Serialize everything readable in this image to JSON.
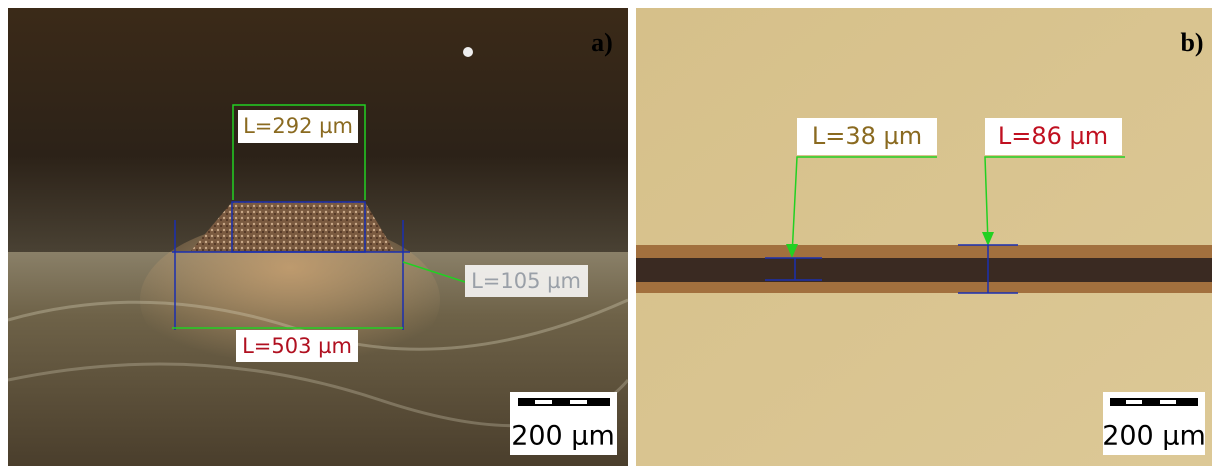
{
  "panels": [
    {
      "label": "a)",
      "measurements": [
        "L=292 µm",
        "L=105 µm",
        "L=503 µm"
      ],
      "scale_bar": "200 µm"
    },
    {
      "label": "b)",
      "measurements": [
        "L=38 µm",
        "L=86 µm"
      ],
      "scale_bar": "200 µm"
    }
  ]
}
